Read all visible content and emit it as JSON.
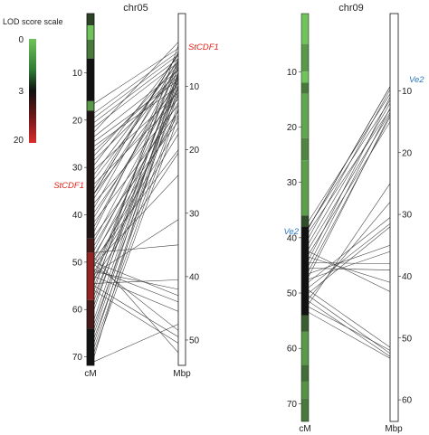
{
  "legend": {
    "title": "LOD score scale",
    "ticks": [
      {
        "value": "0",
        "color": "#6fc35a"
      },
      {
        "value": "3",
        "color": "#111111"
      },
      {
        "value": "20",
        "color": "#d92b2b"
      }
    ]
  },
  "chart_data": {
    "type": "comparative-map",
    "panels": [
      {
        "title": "chr05",
        "genetic_axis_label": "cM",
        "physical_axis_label": "Mbp",
        "genetic_ticks": [
          10,
          20,
          30,
          40,
          50,
          60,
          70
        ],
        "genetic_range": [
          -2.5,
          71.8
        ],
        "physical_ticks": [
          10,
          20,
          30,
          40,
          50
        ],
        "physical_range": [
          -1.5,
          54
        ],
        "markers": [
          {
            "gene": "StCDF1",
            "color": "#e2231a",
            "cM": 35.5,
            "Mbp": 4.7
          }
        ],
        "lod_bands": [
          {
            "from": -2.5,
            "to": 0,
            "lod": 2
          },
          {
            "from": 0,
            "to": 3,
            "lod": 0
          },
          {
            "from": 3,
            "to": 7,
            "lod": 1
          },
          {
            "from": 7,
            "to": 16,
            "lod": 3
          },
          {
            "from": 16,
            "to": 18,
            "lod": 0.5
          },
          {
            "from": 18,
            "to": 45,
            "lod": 3.5
          },
          {
            "from": 45,
            "to": 48,
            "lod": 5
          },
          {
            "from": 48,
            "to": 58,
            "lod": 8
          },
          {
            "from": 58,
            "to": 64,
            "lod": 5
          },
          {
            "from": 64,
            "to": 71.8,
            "lod": 3
          }
        ],
        "links": [
          [
            16.5,
            4
          ],
          [
            18.5,
            4.5
          ],
          [
            19.5,
            5
          ],
          [
            20.5,
            5.6
          ],
          [
            21.5,
            6.2
          ],
          [
            22.5,
            3
          ],
          [
            23.5,
            7.5
          ],
          [
            24.5,
            9
          ],
          [
            25.5,
            10
          ],
          [
            26.5,
            8
          ],
          [
            27.5,
            6.6
          ],
          [
            28.5,
            8.4
          ],
          [
            29.5,
            5.1
          ],
          [
            30.5,
            11
          ],
          [
            31.5,
            6
          ],
          [
            32.5,
            7.2
          ],
          [
            33.5,
            12
          ],
          [
            34.5,
            4.8
          ],
          [
            35.5,
            9.5
          ],
          [
            36.5,
            6.8
          ],
          [
            37.5,
            13
          ],
          [
            38.5,
            5.5
          ],
          [
            39.5,
            10.5
          ],
          [
            40.5,
            8.8
          ],
          [
            41.5,
            14
          ],
          [
            42.5,
            7.3
          ],
          [
            43.5,
            6.1
          ],
          [
            44.5,
            15.5
          ],
          [
            45.5,
            9.2
          ],
          [
            46.5,
            12.5
          ],
          [
            47.5,
            10.2
          ],
          [
            48.5,
            14.5
          ],
          [
            49,
            11.5
          ],
          [
            49.5,
            20
          ],
          [
            50,
            16.5
          ],
          [
            51,
            13.8
          ],
          [
            52,
            17.5
          ],
          [
            53,
            6.3
          ],
          [
            53.5,
            20.5
          ],
          [
            54,
            5.7
          ],
          [
            55,
            8.2
          ],
          [
            56,
            3.5
          ],
          [
            57,
            10.8
          ],
          [
            58,
            7.7
          ],
          [
            59,
            9.8
          ],
          [
            60,
            6.9
          ],
          [
            62,
            8.6
          ],
          [
            63,
            11.2
          ],
          [
            64,
            7.9
          ],
          [
            65,
            9.1
          ],
          [
            66,
            12.8
          ],
          [
            67,
            10.1
          ],
          [
            68,
            13.5
          ],
          [
            69,
            14.8
          ],
          [
            70,
            8.3
          ],
          [
            50.5,
            24
          ],
          [
            52.5,
            31
          ],
          [
            48,
            35
          ],
          [
            54.5,
            40.5
          ],
          [
            52,
            42
          ],
          [
            50,
            43
          ],
          [
            51.5,
            44
          ],
          [
            53,
            45.5
          ],
          [
            50.5,
            48.5
          ],
          [
            55,
            49.5
          ],
          [
            56,
            50.5
          ],
          [
            49,
            52
          ],
          [
            71,
            47.5
          ]
        ]
      },
      {
        "title": "chr09",
        "genetic_axis_label": "cM",
        "physical_axis_label": "Mbp",
        "genetic_ticks": [
          10,
          20,
          30,
          40,
          50,
          60,
          70
        ],
        "genetic_range": [
          -0.5,
          73.2
        ],
        "physical_ticks": [
          10,
          20,
          30,
          40,
          50,
          60
        ],
        "physical_range": [
          -2.5,
          63.5
        ],
        "markers": [
          {
            "gene": "Ve2",
            "color": "#2a78c4",
            "cM": 38.2,
            "Mbp": 9.3
          }
        ],
        "lod_bands": [
          {
            "from": -0.5,
            "to": 5,
            "lod": 0
          },
          {
            "from": 5,
            "to": 10,
            "lod": 0.5
          },
          {
            "from": 10,
            "to": 12,
            "lod": 0
          },
          {
            "from": 12,
            "to": 14,
            "lod": 1
          },
          {
            "from": 14,
            "to": 22,
            "lod": 0.3
          },
          {
            "from": 22,
            "to": 26,
            "lod": 0.8
          },
          {
            "from": 26,
            "to": 36,
            "lod": 0.4
          },
          {
            "from": 36,
            "to": 38,
            "lod": 1.8
          },
          {
            "from": 38,
            "to": 54,
            "lod": 3
          },
          {
            "from": 54,
            "to": 57,
            "lod": 1.5
          },
          {
            "from": 57,
            "to": 63,
            "lod": 0.5
          },
          {
            "from": 63,
            "to": 66,
            "lod": 1.2
          },
          {
            "from": 66,
            "to": 69,
            "lod": 0.6
          },
          {
            "from": 69,
            "to": 73.2,
            "lod": 1
          }
        ],
        "links": [
          [
            37,
            10.5
          ],
          [
            38,
            11.5
          ],
          [
            39,
            13
          ],
          [
            40,
            9.8
          ],
          [
            41,
            12
          ],
          [
            42,
            13.5
          ],
          [
            43,
            15
          ],
          [
            44,
            11
          ],
          [
            45,
            12.8
          ],
          [
            46,
            14.2
          ],
          [
            47,
            13.8
          ],
          [
            48,
            30.5
          ],
          [
            49,
            31.5
          ],
          [
            50,
            32
          ],
          [
            51,
            28
          ],
          [
            52,
            25
          ],
          [
            46.5,
            35
          ],
          [
            47.5,
            36
          ],
          [
            44.5,
            38
          ],
          [
            45.5,
            39
          ],
          [
            43.5,
            41
          ],
          [
            42.5,
            42.5
          ],
          [
            49.5,
            51.5
          ],
          [
            50.5,
            52.5
          ],
          [
            51.5,
            53
          ],
          [
            52.5,
            52
          ],
          [
            53.5,
            53.3
          ]
        ]
      }
    ]
  }
}
